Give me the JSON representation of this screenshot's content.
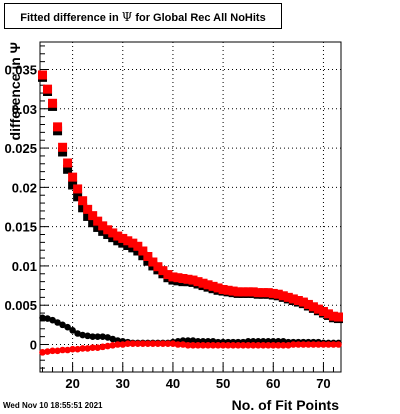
{
  "chart_data": {
    "type": "scatter",
    "title_prefix": "Fitted difference in",
    "title_symbol": "Ψ",
    "title_suffix": "for Global Rec All NoHits",
    "xlabel": "No. of Fit Points",
    "ylabel": "difference in Ψ",
    "xlim": [
      13.5,
      73.5
    ],
    "ylim": [
      -0.0035,
      0.0385
    ],
    "xticks": [
      20,
      30,
      40,
      50,
      60,
      70
    ],
    "yticks": [
      0,
      0.005,
      0.01,
      0.015,
      0.02,
      0.025,
      0.03,
      0.035
    ],
    "ytick_labels": [
      "0",
      "0.005",
      "0.01",
      "0.015",
      "0.02",
      "0.025",
      "0.03",
      "0.035"
    ],
    "grid": true,
    "series": [
      {
        "color": "#000000",
        "marker": "square",
        "x": [
          14,
          15,
          16,
          17,
          18,
          19,
          20,
          21,
          22,
          23,
          24,
          25,
          26,
          27,
          28,
          29,
          30,
          31,
          32,
          33,
          34,
          35,
          36,
          37,
          38,
          39,
          40,
          41,
          42,
          43,
          44,
          45,
          46,
          47,
          48,
          49,
          50,
          51,
          52,
          53,
          54,
          55,
          56,
          57,
          58,
          59,
          60,
          61,
          62,
          63,
          64,
          65,
          66,
          67,
          68,
          69,
          70,
          71,
          72,
          73
        ],
        "y": [
          0.034,
          0.0322,
          0.0303,
          0.0272,
          0.0245,
          0.0223,
          0.0203,
          0.0188,
          0.0174,
          0.0163,
          0.0155,
          0.0149,
          0.0144,
          0.014,
          0.0136,
          0.0132,
          0.0129,
          0.0126,
          0.0123,
          0.0119,
          0.0113,
          0.0106,
          0.01,
          0.0095,
          0.009,
          0.0085,
          0.0082,
          0.0081,
          0.008,
          0.008,
          0.0079,
          0.0077,
          0.0075,
          0.0073,
          0.0071,
          0.0069,
          0.0068,
          0.0067,
          0.0066,
          0.0065,
          0.0065,
          0.0065,
          0.0065,
          0.0064,
          0.0064,
          0.0064,
          0.0063,
          0.0062,
          0.006,
          0.0058,
          0.0056,
          0.0054,
          0.0052,
          0.0049,
          0.0046,
          0.0043,
          0.004,
          0.0037,
          0.0034,
          0.0033
        ]
      },
      {
        "color": "#ff0000",
        "marker": "square",
        "x": [
          14,
          15,
          16,
          17,
          18,
          19,
          20,
          21,
          22,
          23,
          24,
          25,
          26,
          27,
          28,
          29,
          30,
          31,
          32,
          33,
          34,
          35,
          36,
          37,
          38,
          39,
          40,
          41,
          42,
          43,
          44,
          45,
          46,
          47,
          48,
          49,
          50,
          51,
          52,
          53,
          54,
          55,
          56,
          57,
          58,
          59,
          60,
          61,
          62,
          63,
          64,
          65,
          66,
          67,
          68,
          69,
          70,
          71,
          72,
          73
        ],
        "y": [
          0.0343,
          0.0325,
          0.0307,
          0.0277,
          0.0251,
          0.0231,
          0.0213,
          0.0198,
          0.0183,
          0.0172,
          0.0164,
          0.0157,
          0.0151,
          0.0146,
          0.0142,
          0.0138,
          0.0135,
          0.0132,
          0.0129,
          0.0125,
          0.0119,
          0.0112,
          0.0105,
          0.0099,
          0.0094,
          0.0089,
          0.0086,
          0.0085,
          0.0084,
          0.0083,
          0.0082,
          0.008,
          0.0078,
          0.0076,
          0.0074,
          0.0072,
          0.007,
          0.0069,
          0.0068,
          0.0067,
          0.0067,
          0.0067,
          0.0067,
          0.0066,
          0.0066,
          0.0066,
          0.0065,
          0.0064,
          0.0062,
          0.006,
          0.0058,
          0.0056,
          0.0054,
          0.0051,
          0.0048,
          0.0045,
          0.0042,
          0.0039,
          0.0036,
          0.0035
        ]
      },
      {
        "color": "#000000",
        "marker": "circle",
        "x": [
          14,
          15,
          16,
          17,
          18,
          19,
          20,
          21,
          22,
          23,
          24,
          25,
          26,
          27,
          28,
          29,
          30,
          31,
          32,
          33,
          34,
          35,
          36,
          37,
          38,
          39,
          40,
          41,
          42,
          43,
          44,
          45,
          46,
          47,
          48,
          49,
          50,
          51,
          52,
          53,
          54,
          55,
          56,
          57,
          58,
          59,
          60,
          61,
          62,
          63,
          64,
          65,
          66,
          67,
          68,
          69,
          70,
          71,
          72,
          73
        ],
        "y": [
          0.0034,
          0.0033,
          0.0031,
          0.0028,
          0.0025,
          0.0022,
          0.0018,
          0.0014,
          0.0012,
          0.0011,
          0.001,
          0.001,
          0.001,
          0.0009,
          0.0007,
          0.0005,
          0.0004,
          0.0003,
          0.0002,
          0.0002,
          0.0002,
          0.0002,
          0.0002,
          0.0002,
          0.0002,
          0.0002,
          0.0003,
          0.0004,
          0.0005,
          0.0005,
          0.0005,
          0.0004,
          0.0004,
          0.0004,
          0.0004,
          0.0003,
          0.0003,
          0.0003,
          0.0003,
          0.0003,
          0.0003,
          0.0004,
          0.0004,
          0.0004,
          0.0004,
          0.0004,
          0.0004,
          0.0004,
          0.0004,
          0.0003,
          0.0003,
          0.0003,
          0.0003,
          0.0003,
          0.0003,
          0.0003,
          0.0002,
          0.0002,
          0.0002,
          0.0002
        ]
      },
      {
        "color": "#ff0000",
        "marker": "circle",
        "x": [
          14,
          15,
          16,
          17,
          18,
          19,
          20,
          21,
          22,
          23,
          24,
          25,
          26,
          27,
          28,
          29,
          30,
          31,
          32,
          33,
          34,
          35,
          36,
          37,
          38,
          39,
          40,
          41,
          42,
          43,
          44,
          45,
          46,
          47,
          48,
          49,
          50,
          51,
          52,
          53,
          54,
          55,
          56,
          57,
          58,
          59,
          60,
          61,
          62,
          63,
          64,
          65,
          66,
          67,
          68,
          69,
          70,
          71,
          72,
          73
        ],
        "y": [
          -0.001,
          -0.0009,
          -0.0008,
          -0.0008,
          -0.0007,
          -0.0007,
          -0.0006,
          -0.0006,
          -0.0005,
          -0.0005,
          -0.0004,
          -0.0004,
          -0.0003,
          -0.0002,
          -0.0001,
          0.0,
          0.0,
          0.0001,
          0.0001,
          0.0001,
          0.0001,
          0.0001,
          0.0001,
          0.0001,
          0.0001,
          0.0001,
          0.0001,
          0.0,
          0.0,
          -0.0001,
          -0.0001,
          -0.0001,
          -0.0001,
          -0.0001,
          -0.0001,
          -0.0001,
          -0.0001,
          -0.0001,
          -0.0001,
          -0.0001,
          -0.0001,
          -0.0001,
          -0.0001,
          -0.0001,
          -0.0001,
          -0.0001,
          -0.0001,
          -0.0001,
          -0.0001,
          -0.0001,
          0.0,
          0.0,
          0.0,
          0.0,
          0.0,
          0.0,
          0.0,
          0.0,
          0.0,
          0.0
        ]
      }
    ]
  },
  "footer": {
    "timestamp": "Wed Nov 10 18:55:51 2021"
  }
}
